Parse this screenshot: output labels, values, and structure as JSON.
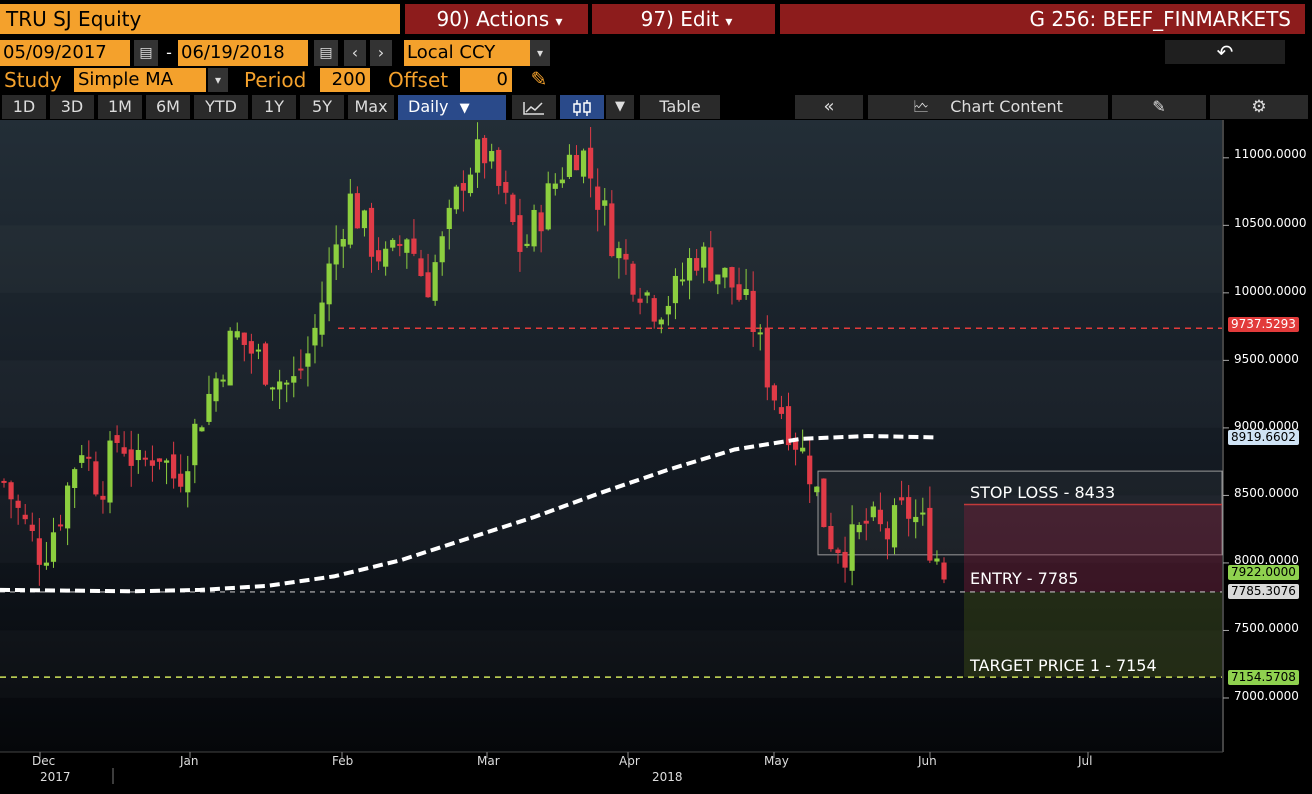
{
  "header": {
    "security": "TRU SJ Equity",
    "actions_label": "90) Actions",
    "edit_label": "97) Edit",
    "window_title": "G 256: BEEF_FINMARKETS"
  },
  "range": {
    "start_date": "05/09/2017",
    "end_date": "06/19/2018",
    "currency": "Local CCY"
  },
  "study": {
    "study_label": "Study",
    "study_value": "Simple MA",
    "period_label": "Period",
    "period_value": "200",
    "offset_label": "Offset",
    "offset_value": "0"
  },
  "toolbar": {
    "periods": [
      "1D",
      "3D",
      "1M",
      "6M",
      "YTD",
      "1Y",
      "5Y",
      "Max"
    ],
    "frequency": "Daily",
    "table_label": "Table",
    "collapse_label": "«",
    "chart_content_label": "Chart Content"
  },
  "chart_data": {
    "type": "candlestick",
    "y_ticks": [
      "11000.0000",
      "10500.0000",
      "10000.0000",
      "9500.0000",
      "9000.0000",
      "8500.0000",
      "8000.0000",
      "7500.0000",
      "7000.0000"
    ],
    "ylim": [
      6600,
      11280
    ],
    "x_labels": [
      {
        "label": "Dec",
        "year": "2017"
      },
      {
        "label": "Jan",
        "year": ""
      },
      {
        "label": "Feb",
        "year": ""
      },
      {
        "label": "Mar",
        "year": ""
      },
      {
        "label": "Apr",
        "year": "2018"
      },
      {
        "label": "May",
        "year": ""
      },
      {
        "label": "Jun",
        "year": ""
      },
      {
        "label": "Jul",
        "year": ""
      }
    ],
    "price_tags": [
      {
        "value": "9737.5293",
        "color": "#e23b3b"
      },
      {
        "value": "8919.6602",
        "color": "#cfe3f5"
      },
      {
        "value": "7922.0000",
        "color": "#8fd14f"
      },
      {
        "value": "7785.3076",
        "color": "#d9d9d9"
      },
      {
        "value": "7154.5708",
        "color": "#8fd14f"
      }
    ],
    "annotations": {
      "stop_loss": "STOP LOSS - 8433",
      "entry": "ENTRY - 7785",
      "target": "TARGET PRICE 1 - 7154"
    },
    "moving_average": {
      "name": "Simple MA 200",
      "values": [
        7800,
        7795,
        7790,
        7800,
        7830,
        7900,
        8020,
        8180,
        8340,
        8520,
        8690,
        8840,
        8919,
        8940,
        8930
      ]
    },
    "candle_close_path": [
      8600,
      8300,
      8050,
      8400,
      8900,
      8550,
      8950,
      8700,
      8850,
      8600,
      9000,
      9350,
      9700,
      9550,
      9400,
      9300,
      9600,
      10200,
      10700,
      10400,
      10200,
      10450,
      10050,
      10400,
      10900,
      11050,
      10700,
      10300,
      10600,
      10900,
      11100,
      10700,
      10300,
      10100,
      9900,
      10000,
      10300,
      10200,
      10050,
      9800,
      9300,
      9000,
      8700,
      8200,
      8100,
      8300,
      8200,
      8400,
      8250,
      7922
    ],
    "colors": {
      "up": "#8ccf3f",
      "down": "#e03b47",
      "ma": "#ffffff"
    }
  }
}
